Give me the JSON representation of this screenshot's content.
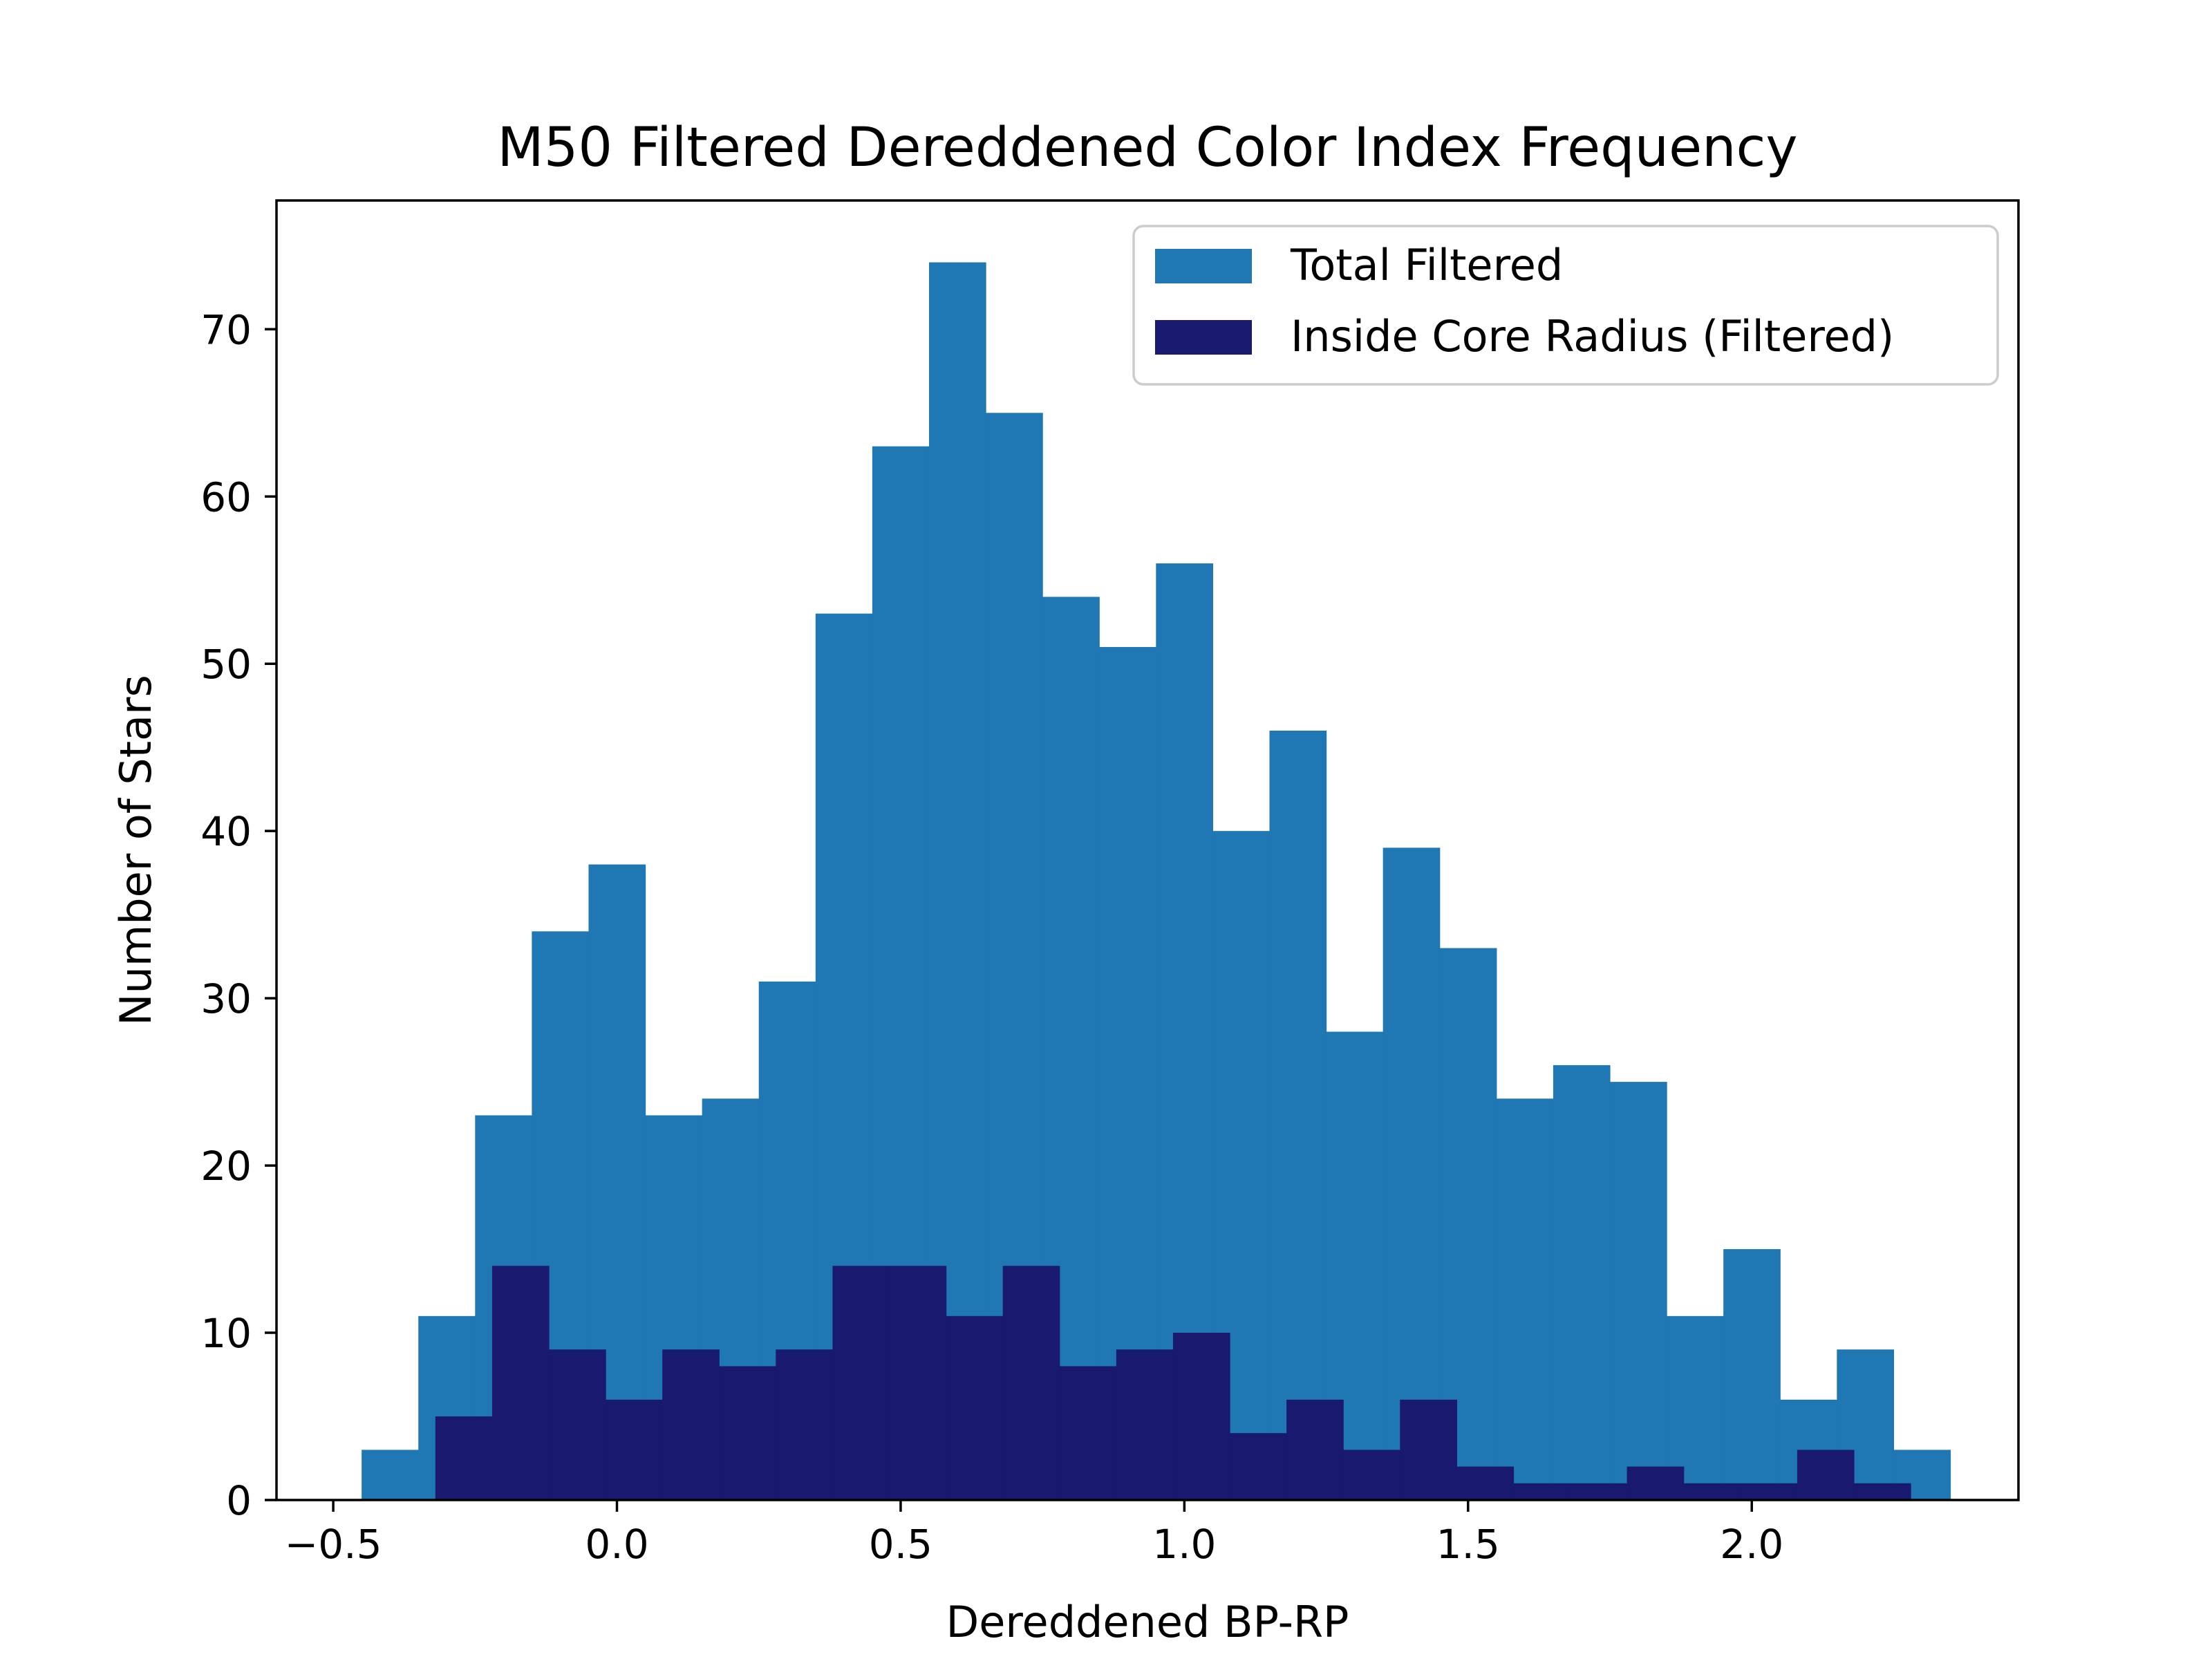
{
  "chart_data": {
    "type": "bar",
    "title": "M50 Filtered Dereddened Color Index Frequency",
    "xlabel": "Dereddened BP-RP",
    "ylabel": "Number of Stars",
    "xlim": [
      -0.6,
      2.47
    ],
    "ylim": [
      0,
      77.7
    ],
    "grid": false,
    "legend_placement": "top-right",
    "xticks": [
      -0.5,
      0.0,
      0.5,
      1.0,
      1.5,
      2.0
    ],
    "xtick_labels": [
      "−0.5",
      "0.0",
      "0.5",
      "1.0",
      "1.5",
      "2.0"
    ],
    "yticks": [
      0,
      10,
      20,
      30,
      40,
      50,
      60,
      70
    ],
    "ytick_labels": [
      "0",
      "10",
      "20",
      "30",
      "40",
      "50",
      "60",
      "70"
    ],
    "series": [
      {
        "name": "Total Filtered",
        "color": "#1f77b4",
        "bin_start": -0.45,
        "bin_width": 0.1,
        "values": [
          3,
          11,
          23,
          34,
          38,
          23,
          24,
          31,
          53,
          63,
          74,
          65,
          54,
          51,
          56,
          40,
          46,
          28,
          39,
          33,
          24,
          26,
          25,
          11,
          15,
          6,
          9,
          3
        ]
      },
      {
        "name": "Inside Core Radius (Filtered)",
        "color": "#191970",
        "bin_start": -0.32,
        "bin_width": 0.1,
        "values": [
          5,
          14,
          9,
          6,
          9,
          8,
          9,
          14,
          14,
          11,
          14,
          8,
          9,
          10,
          4,
          6,
          3,
          6,
          2,
          1,
          1,
          2,
          1,
          1,
          3,
          1
        ]
      }
    ]
  }
}
